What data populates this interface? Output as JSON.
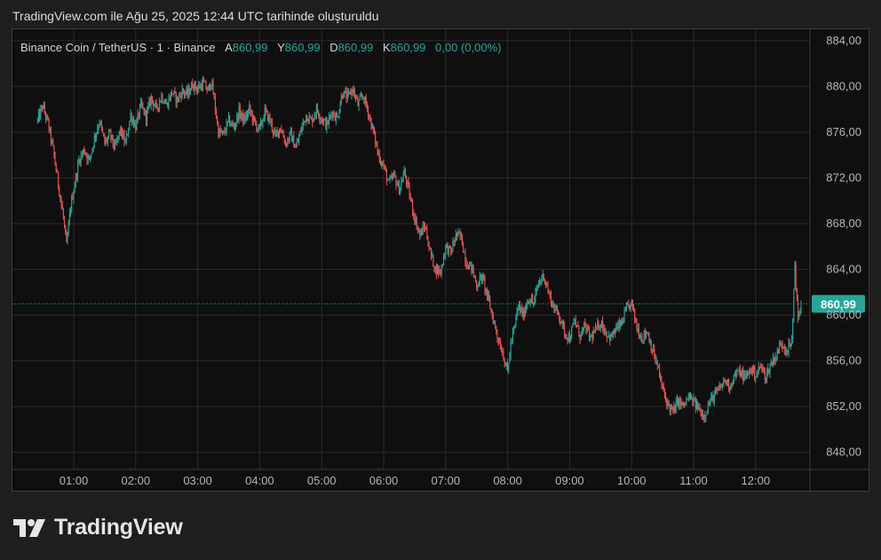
{
  "caption": "TradingView.com ile Ağu 25, 2025 12:44 UTC tarihinde oluşturuldu",
  "legend": {
    "symbol": "Binance Coin / TetherUS · 1 · Binance",
    "open_label": "A",
    "open": "860,99",
    "high_label": "Y",
    "high": "860,99",
    "low_label": "D",
    "low": "860,99",
    "close_label": "K",
    "close": "860,99",
    "change": "0,00 (0,00%)"
  },
  "brand": {
    "name": "TradingView",
    "logo_icon": "tradingview-logo-icon"
  },
  "colors": {
    "up": "#26a69a",
    "down": "#ef5350",
    "background": "#0f0f0f",
    "grid": "#2a2a2a",
    "text": "#b2b5be",
    "last_price": "#26a69a"
  },
  "chart_data": {
    "type": "candlestick",
    "title": "",
    "xlabel": "",
    "ylabel": "",
    "ylim": [
      846.5,
      885
    ],
    "xlim": [
      "00:25",
      "12:50"
    ],
    "y_ticks": [
      884,
      880,
      876,
      872,
      868,
      864,
      860,
      856,
      852,
      848
    ],
    "y_tick_labels": [
      "884,00",
      "880,00",
      "876,00",
      "872,00",
      "868,00",
      "864,00",
      "860,00",
      "856,00",
      "852,00",
      "848,00"
    ],
    "x_tick_labels": [
      "01:00",
      "02:00",
      "03:00",
      "04:00",
      "05:00",
      "06:00",
      "07:00",
      "08:00",
      "09:00",
      "10:00",
      "11:00",
      "12:00"
    ],
    "last_price": 860.99,
    "last_price_label": "860,99",
    "grid": true,
    "price_path": [
      [
        "00:25",
        877.0
      ],
      [
        "00:30",
        878.3
      ],
      [
        "00:35",
        876.8
      ],
      [
        "00:40",
        874.5
      ],
      [
        "00:45",
        871.5
      ],
      [
        "00:50",
        868.5
      ],
      [
        "00:53",
        866.0
      ],
      [
        "00:57",
        869.5
      ],
      [
        "01:00",
        871.0
      ],
      [
        "01:05",
        873.5
      ],
      [
        "01:10",
        874.5
      ],
      [
        "01:15",
        873.5
      ],
      [
        "01:20",
        875.5
      ],
      [
        "01:25",
        877.0
      ],
      [
        "01:30",
        875.0
      ],
      [
        "01:35",
        875.8
      ],
      [
        "01:40",
        874.6
      ],
      [
        "01:45",
        876.2
      ],
      [
        "01:50",
        875.0
      ],
      [
        "01:55",
        877.5
      ],
      [
        "02:00",
        876.5
      ],
      [
        "02:05",
        878.3
      ],
      [
        "02:10",
        877.4
      ],
      [
        "02:15",
        879.0
      ],
      [
        "02:20",
        878.0
      ],
      [
        "02:25",
        879.2
      ],
      [
        "02:30",
        878.4
      ],
      [
        "02:35",
        879.5
      ],
      [
        "02:40",
        878.8
      ],
      [
        "02:45",
        879.6
      ],
      [
        "02:50",
        879.3
      ],
      [
        "02:55",
        880.2
      ],
      [
        "03:00",
        879.8
      ],
      [
        "03:05",
        880.3
      ],
      [
        "03:10",
        879.6
      ],
      [
        "03:13",
        880.5
      ],
      [
        "03:16",
        878.8
      ],
      [
        "03:20",
        876.0
      ],
      [
        "03:25",
        875.8
      ],
      [
        "03:30",
        877.0
      ],
      [
        "03:35",
        876.4
      ],
      [
        "03:40",
        877.8
      ],
      [
        "03:45",
        877.0
      ],
      [
        "03:50",
        878.0
      ],
      [
        "03:55",
        876.8
      ],
      [
        "04:00",
        876.2
      ],
      [
        "04:05",
        877.8
      ],
      [
        "04:10",
        877.0
      ],
      [
        "04:15",
        875.6
      ],
      [
        "04:20",
        876.5
      ],
      [
        "04:25",
        875.0
      ],
      [
        "04:30",
        875.8
      ],
      [
        "04:35",
        874.6
      ],
      [
        "04:40",
        876.2
      ],
      [
        "04:45",
        877.5
      ],
      [
        "04:50",
        877.0
      ],
      [
        "04:55",
        878.0
      ],
      [
        "05:00",
        877.2
      ],
      [
        "05:05",
        876.6
      ],
      [
        "05:10",
        877.8
      ],
      [
        "05:15",
        877.2
      ],
      [
        "05:20",
        879.5
      ],
      [
        "05:25",
        879.0
      ],
      [
        "05:30",
        879.8
      ],
      [
        "05:35",
        878.4
      ],
      [
        "05:40",
        879.2
      ],
      [
        "05:45",
        877.8
      ],
      [
        "05:50",
        876.0
      ],
      [
        "05:55",
        874.0
      ],
      [
        "06:00",
        873.0
      ],
      [
        "06:05",
        871.5
      ],
      [
        "06:10",
        872.2
      ],
      [
        "06:15",
        871.0
      ],
      [
        "06:20",
        872.5
      ],
      [
        "06:25",
        870.5
      ],
      [
        "06:30",
        868.5
      ],
      [
        "06:35",
        867.0
      ],
      [
        "06:40",
        867.8
      ],
      [
        "06:45",
        865.5
      ],
      [
        "06:50",
        864.0
      ],
      [
        "06:55",
        863.8
      ],
      [
        "07:00",
        866.0
      ],
      [
        "07:05",
        865.5
      ],
      [
        "07:10",
        867.0
      ],
      [
        "07:15",
        866.8
      ],
      [
        "07:20",
        864.6
      ],
      [
        "07:25",
        864.2
      ],
      [
        "07:30",
        862.6
      ],
      [
        "07:35",
        863.4
      ],
      [
        "07:40",
        861.8
      ],
      [
        "07:45",
        860.0
      ],
      [
        "07:50",
        858.2
      ],
      [
        "07:55",
        856.8
      ],
      [
        "08:00",
        855.0
      ],
      [
        "08:03",
        857.5
      ],
      [
        "08:07",
        859.0
      ],
      [
        "08:10",
        860.8
      ],
      [
        "08:15",
        860.0
      ],
      [
        "08:20",
        861.5
      ],
      [
        "08:25",
        861.0
      ],
      [
        "08:30",
        862.8
      ],
      [
        "08:35",
        863.5
      ],
      [
        "08:40",
        861.8
      ],
      [
        "08:45",
        860.6
      ],
      [
        "08:50",
        860.0
      ],
      [
        "08:55",
        858.5
      ],
      [
        "09:00",
        858.0
      ],
      [
        "09:05",
        859.5
      ],
      [
        "09:10",
        858.2
      ],
      [
        "09:15",
        859.0
      ],
      [
        "09:20",
        858.0
      ],
      [
        "09:25",
        858.6
      ],
      [
        "09:30",
        859.4
      ],
      [
        "09:35",
        858.5
      ],
      [
        "09:40",
        858.0
      ],
      [
        "09:45",
        858.8
      ],
      [
        "09:50",
        859.2
      ],
      [
        "09:55",
        860.5
      ],
      [
        "10:00",
        861.0
      ],
      [
        "10:05",
        859.0
      ],
      [
        "10:10",
        858.0
      ],
      [
        "10:15",
        858.6
      ],
      [
        "10:20",
        857.0
      ],
      [
        "10:25",
        855.5
      ],
      [
        "10:30",
        853.5
      ],
      [
        "10:35",
        852.2
      ],
      [
        "10:40",
        851.5
      ],
      [
        "10:45",
        852.5
      ],
      [
        "10:50",
        852.0
      ],
      [
        "10:55",
        852.8
      ],
      [
        "11:00",
        852.4
      ],
      [
        "11:05",
        851.8
      ],
      [
        "11:10",
        851.2
      ],
      [
        "11:15",
        852.3
      ],
      [
        "11:20",
        853.0
      ],
      [
        "11:25",
        853.5
      ],
      [
        "11:30",
        854.3
      ],
      [
        "11:35",
        853.8
      ],
      [
        "11:40",
        854.8
      ],
      [
        "11:45",
        855.0
      ],
      [
        "11:50",
        854.5
      ],
      [
        "11:55",
        855.3
      ],
      [
        "12:00",
        854.8
      ],
      [
        "12:05",
        855.5
      ],
      [
        "12:10",
        854.6
      ],
      [
        "12:15",
        855.8
      ],
      [
        "12:20",
        856.5
      ],
      [
        "12:25",
        857.6
      ],
      [
        "12:30",
        857.0
      ],
      [
        "12:35",
        857.5
      ],
      [
        "12:38",
        864.5
      ],
      [
        "12:41",
        859.5
      ],
      [
        "12:44",
        860.99
      ]
    ]
  }
}
